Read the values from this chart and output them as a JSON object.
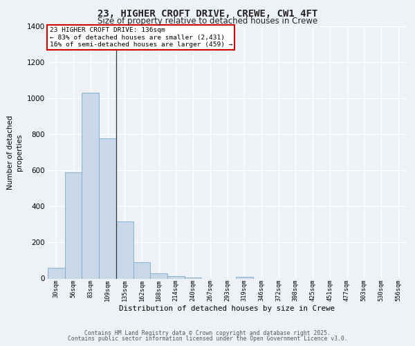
{
  "title_line1": "23, HIGHER CROFT DRIVE, CREWE, CW1 4FT",
  "title_line2": "Size of property relative to detached houses in Crewe",
  "xlabel": "Distribution of detached houses by size in Crewe",
  "ylabel": "Number of detached\nproperties",
  "bar_labels": [
    "30sqm",
    "56sqm",
    "83sqm",
    "109sqm",
    "135sqm",
    "162sqm",
    "188sqm",
    "214sqm",
    "240sqm",
    "267sqm",
    "293sqm",
    "319sqm",
    "346sqm",
    "372sqm",
    "398sqm",
    "425sqm",
    "451sqm",
    "477sqm",
    "503sqm",
    "530sqm",
    "556sqm"
  ],
  "bar_values": [
    60,
    590,
    1030,
    775,
    315,
    90,
    30,
    15,
    5,
    0,
    0,
    8,
    0,
    0,
    0,
    0,
    0,
    0,
    0,
    0,
    0
  ],
  "bar_color": "#c8d8e8",
  "bar_edge_color": "#7aaac8",
  "highlight_bar_index": 3,
  "highlight_line_color": "#333333",
  "ylim": [
    0,
    1400
  ],
  "yticks": [
    0,
    200,
    400,
    600,
    800,
    1000,
    1200,
    1400
  ],
  "annotation_text": "23 HIGHER CROFT DRIVE: 136sqm\n← 83% of detached houses are smaller (2,431)\n16% of semi-detached houses are larger (459) →",
  "annotation_box_color": "#ffffff",
  "annotation_box_edge_color": "#cc0000",
  "background_color": "#eef2f7",
  "grid_color": "#ffffff",
  "footer_line1": "Contains HM Land Registry data © Crown copyright and database right 2025.",
  "footer_line2": "Contains public sector information licensed under the Open Government Licence v3.0."
}
